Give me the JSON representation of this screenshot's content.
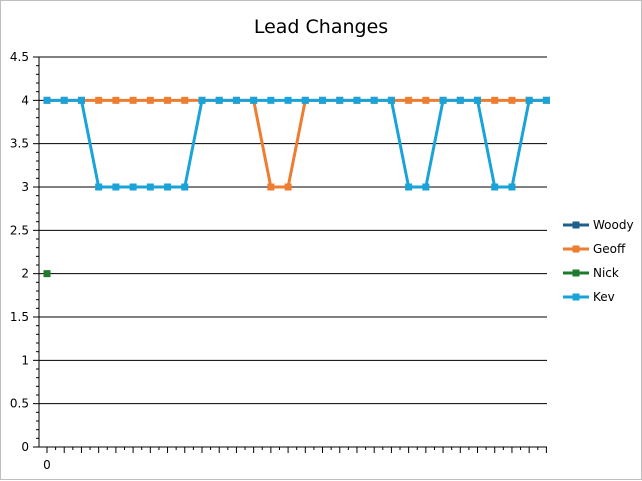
{
  "chart_data": {
    "type": "line",
    "title": "Lead Changes",
    "xlabel": "",
    "ylabel": "",
    "ylim": [
      0,
      4.5
    ],
    "y_ticks": [
      "0",
      "0.5",
      "1",
      "1.5",
      "2",
      "2.5",
      "3",
      "3.5",
      "4",
      "4.5"
    ],
    "x_tick_labels": [
      "0"
    ],
    "x_minor_ticks": 29,
    "grid": "horizontal",
    "legend_position": "right",
    "series": [
      {
        "name": "Woody",
        "color": "#1f5f8b",
        "values": []
      },
      {
        "name": "Geoff",
        "color": "#ed7d31",
        "values": [
          4,
          4,
          4,
          4,
          4,
          4,
          4,
          4,
          4,
          4,
          4,
          4,
          4,
          3,
          3,
          4,
          4,
          4,
          4,
          4,
          4,
          4,
          4,
          4,
          4,
          4,
          4,
          4,
          4,
          4
        ]
      },
      {
        "name": "Nick",
        "color": "#1f7a2e",
        "values": [
          2
        ]
      },
      {
        "name": "Kev",
        "color": "#1aa3d8",
        "values": [
          4,
          4,
          4,
          3,
          3,
          3,
          3,
          3,
          3,
          4,
          4,
          4,
          4,
          4,
          4,
          4,
          4,
          4,
          4,
          4,
          4,
          3,
          3,
          4,
          4,
          4,
          3,
          3,
          4,
          4
        ]
      }
    ]
  }
}
